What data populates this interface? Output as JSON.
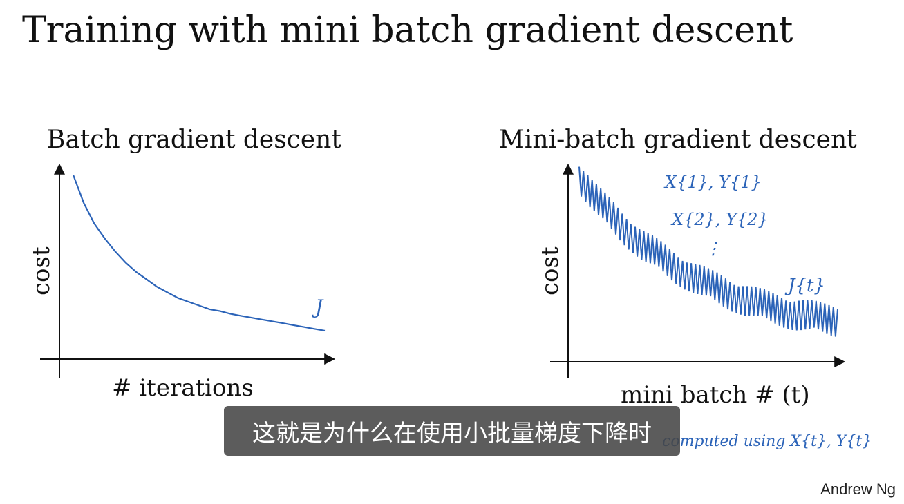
{
  "slide": {
    "title": "Training with mini batch gradient descent",
    "author": "Andrew Ng",
    "subtitle": "这就是为什么在使用小批量梯度下降时"
  },
  "colors": {
    "ink": "#2b63b8",
    "axis": "#111111",
    "subtitle_bg": "#464646"
  },
  "annotations": {
    "left_j": "J",
    "right_minibatch_1": "X{1}, Y{1}",
    "right_minibatch_2": "X{2}, Y{2}",
    "right_dots": "⋮",
    "right_j": "J{t}",
    "bottom_note": "computed using X{t}, Y{t}"
  },
  "chart_data": [
    {
      "type": "line",
      "title": "Batch gradient descent",
      "xlabel": "# iterations",
      "ylabel": "cost",
      "series": [
        {
          "values": [
            9.5,
            8.0,
            6.9,
            6.1,
            5.4,
            4.8,
            4.3,
            3.9,
            3.5,
            3.2,
            2.9,
            2.7,
            2.5,
            2.3,
            2.2,
            2.05,
            1.95,
            1.85,
            1.75,
            1.65,
            1.55,
            1.45,
            1.35,
            1.25,
            1.15
          ]
        }
      ],
      "xlim": [
        0,
        24
      ],
      "ylim": [
        0,
        10
      ]
    },
    {
      "type": "line",
      "title": "Mini-batch gradient descent",
      "xlabel": "mini batch # (t)",
      "ylabel": "cost",
      "series": [
        {
          "trend": [
            9.4,
            8.6,
            7.9,
            7.3,
            6.7,
            6.2,
            5.7,
            5.3,
            4.9,
            4.5,
            4.2,
            3.9,
            3.6,
            3.35,
            3.1,
            2.9,
            2.7,
            2.5,
            2.35,
            2.2,
            2.05,
            1.95,
            1.85,
            1.75,
            1.7
          ],
          "noise": 0.9,
          "oscillations": 60
        }
      ],
      "xlim": [
        0,
        24
      ],
      "ylim": [
        0,
        10
      ]
    }
  ]
}
